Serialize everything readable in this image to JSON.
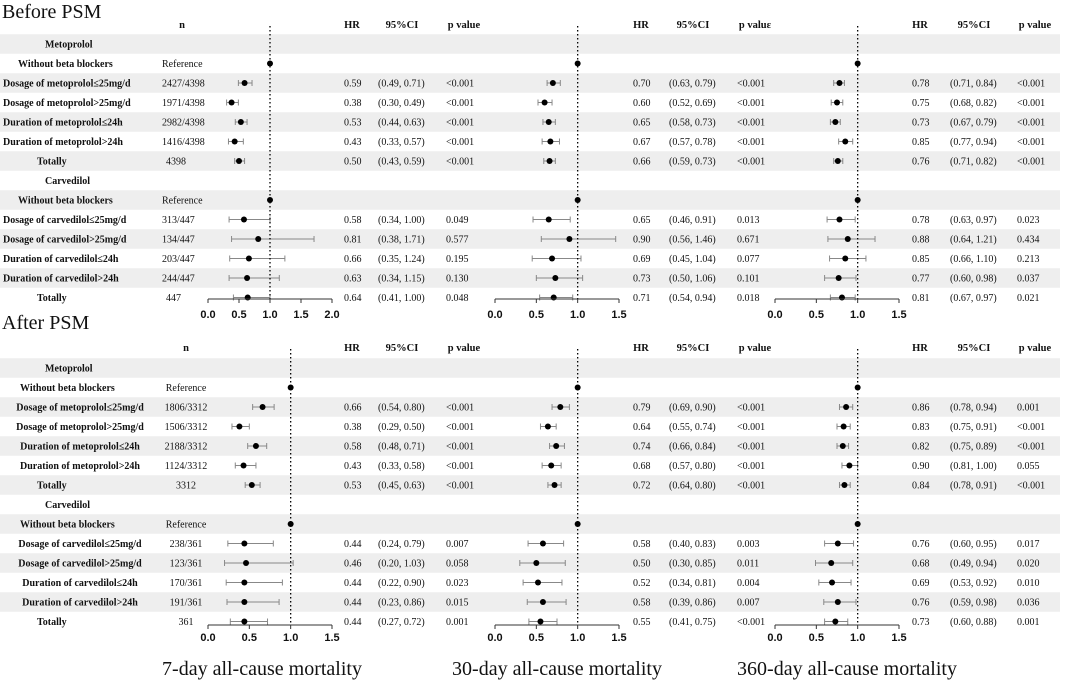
{
  "sections": [
    {
      "title": "Before PSM",
      "columns": {
        "n": "n",
        "hr": "HR",
        "ci": "95%CI",
        "p": "p value",
        "p_truncated": "p valuε"
      },
      "rows": [
        {
          "label": "Metoprolol",
          "kind": "group"
        },
        {
          "label": "Without beta blockers",
          "n": "Reference",
          "kind": "ref"
        },
        {
          "label": "Dosage of metoprolol≤25mg/d",
          "n": "2427/4398",
          "kind": "data",
          "m": [
            {
              "hr": "0.59",
              "ci": "(0.49, 0.71)",
              "p": "<0.001",
              "est": 0.59,
              "lo": 0.49,
              "hi": 0.71
            },
            {
              "hr": "0.70",
              "ci": "(0.63, 0.79)",
              "p": "<0.001",
              "est": 0.7,
              "lo": 0.63,
              "hi": 0.79
            },
            {
              "hr": "0.78",
              "ci": "(0.71, 0.84)",
              "p": "<0.001",
              "est": 0.78,
              "lo": 0.71,
              "hi": 0.84
            }
          ]
        },
        {
          "label": "Dosage of metoprolol>25mg/d",
          "n": "1971/4398",
          "kind": "data",
          "m": [
            {
              "hr": "0.38",
              "ci": "(0.30, 0.49)",
              "p": "<0.001",
              "est": 0.38,
              "lo": 0.3,
              "hi": 0.49
            },
            {
              "hr": "0.60",
              "ci": "(0.52, 0.69)",
              "p": "<0.001",
              "est": 0.6,
              "lo": 0.52,
              "hi": 0.69
            },
            {
              "hr": "0.75",
              "ci": "(0.68, 0.82)",
              "p": "<0.001",
              "est": 0.75,
              "lo": 0.68,
              "hi": 0.82
            }
          ]
        },
        {
          "label": "Duration of metoprolol≤24h",
          "n": "2982/4398",
          "kind": "data",
          "m": [
            {
              "hr": "0.53",
              "ci": "(0.44, 0.63)",
              "p": "<0.001",
              "est": 0.53,
              "lo": 0.44,
              "hi": 0.63
            },
            {
              "hr": "0.65",
              "ci": "(0.58, 0.73)",
              "p": "<0.001",
              "est": 0.65,
              "lo": 0.58,
              "hi": 0.73
            },
            {
              "hr": "0.73",
              "ci": "(0.67, 0.79)",
              "p": "<0.001",
              "est": 0.73,
              "lo": 0.67,
              "hi": 0.79
            }
          ]
        },
        {
          "label": "Duration of metoprolol>24h",
          "n": "1416/4398",
          "kind": "data",
          "m": [
            {
              "hr": "0.43",
              "ci": "(0.33, 0.57)",
              "p": "<0.001",
              "est": 0.43,
              "lo": 0.33,
              "hi": 0.57
            },
            {
              "hr": "0.67",
              "ci": "(0.57, 0.78)",
              "p": "<0.001",
              "est": 0.67,
              "lo": 0.57,
              "hi": 0.78
            },
            {
              "hr": "0.85",
              "ci": "(0.77, 0.94)",
              "p": "<0.001",
              "est": 0.85,
              "lo": 0.77,
              "hi": 0.94
            }
          ]
        },
        {
          "label": "Totally",
          "n": "4398",
          "kind": "data",
          "m": [
            {
              "hr": "0.50",
              "ci": "(0.43, 0.59)",
              "p": "<0.001",
              "est": 0.5,
              "lo": 0.43,
              "hi": 0.59
            },
            {
              "hr": "0.66",
              "ci": "(0.59, 0.73)",
              "p": "<0.001",
              "est": 0.66,
              "lo": 0.59,
              "hi": 0.73
            },
            {
              "hr": "0.76",
              "ci": "(0.71, 0.82)",
              "p": "<0.001",
              "est": 0.76,
              "lo": 0.71,
              "hi": 0.82
            }
          ]
        },
        {
          "label": "Carvedilol",
          "kind": "group"
        },
        {
          "label": "Without beta blockers",
          "n": "Reference",
          "kind": "ref"
        },
        {
          "label": "Dosage of carvedilol≤25mg/d",
          "n": "313/447",
          "kind": "data",
          "m": [
            {
              "hr": "0.58",
              "ci": "(0.34, 1.00)",
              "p": "0.049",
              "est": 0.58,
              "lo": 0.34,
              "hi": 1.0
            },
            {
              "hr": "0.65",
              "ci": "(0.46, 0.91)",
              "p": "0.013",
              "est": 0.65,
              "lo": 0.46,
              "hi": 0.91
            },
            {
              "hr": "0.78",
              "ci": "(0.63, 0.97)",
              "p": "0.023",
              "est": 0.78,
              "lo": 0.63,
              "hi": 0.97
            }
          ]
        },
        {
          "label": "Dosage of carvedilol>25mg/d",
          "n": "134/447",
          "kind": "data",
          "m": [
            {
              "hr": "0.81",
              "ci": "(0.38, 1.71)",
              "p": "0.577",
              "est": 0.81,
              "lo": 0.38,
              "hi": 1.71
            },
            {
              "hr": "0.90",
              "ci": "(0.56, 1.46)",
              "p": "0.671",
              "est": 0.9,
              "lo": 0.56,
              "hi": 1.46
            },
            {
              "hr": "0.88",
              "ci": "(0.64, 1.21)",
              "p": "0.434",
              "est": 0.88,
              "lo": 0.64,
              "hi": 1.21
            }
          ]
        },
        {
          "label": "Duration of carvedilol≤24h",
          "n": "203/447",
          "kind": "data",
          "m": [
            {
              "hr": "0.66",
              "ci": "(0.35, 1.24)",
              "p": "0.195",
              "est": 0.66,
              "lo": 0.35,
              "hi": 1.24
            },
            {
              "hr": "0.69",
              "ci": "(0.45, 1.04)",
              "p": "0.077",
              "est": 0.69,
              "lo": 0.45,
              "hi": 1.04
            },
            {
              "hr": "0.85",
              "ci": "(0.66, 1.10)",
              "p": "0.213",
              "est": 0.85,
              "lo": 0.66,
              "hi": 1.1
            }
          ]
        },
        {
          "label": "Duration of carvedilol>24h",
          "n": "244/447",
          "kind": "data",
          "m": [
            {
              "hr": "0.63",
              "ci": "(0.34, 1.15)",
              "p": "0.130",
              "est": 0.63,
              "lo": 0.34,
              "hi": 1.15
            },
            {
              "hr": "0.73",
              "ci": "(0.50, 1.06)",
              "p": "0.101",
              "est": 0.73,
              "lo": 0.5,
              "hi": 1.06
            },
            {
              "hr": "0.77",
              "ci": "(0.60, 0.98)",
              "p": "0.037",
              "est": 0.77,
              "lo": 0.6,
              "hi": 0.98
            }
          ]
        },
        {
          "label": "Totally",
          "n": "447",
          "kind": "data",
          "m": [
            {
              "hr": "0.64",
              "ci": "(0.41, 1.00)",
              "p": "0.048",
              "est": 0.64,
              "lo": 0.41,
              "hi": 1.0
            },
            {
              "hr": "0.71",
              "ci": "(0.54, 0.94)",
              "p": "0.018",
              "est": 0.71,
              "lo": 0.54,
              "hi": 0.94
            },
            {
              "hr": "0.81",
              "ci": "(0.67, 0.97)",
              "p": "0.021",
              "est": 0.81,
              "lo": 0.67,
              "hi": 0.97
            }
          ]
        }
      ],
      "axes": [
        {
          "ticks": [
            "0.0",
            "0.5",
            "1.0",
            "1.5",
            "2.0"
          ],
          "xlim": [
            0,
            2.0
          ]
        },
        {
          "ticks": [
            "0.0",
            "0.5",
            "1.0",
            "1.5"
          ],
          "xlim": [
            0,
            1.5
          ]
        },
        {
          "ticks": [
            "0.0",
            "0.5",
            "1.0",
            "1.5"
          ],
          "xlim": [
            0,
            1.5
          ]
        }
      ]
    },
    {
      "title": "After PSM",
      "columns": {
        "n": "n",
        "hr": "HR",
        "ci": "95%CI",
        "p": "p value"
      },
      "rows": [
        {
          "label": "Metoprolol",
          "kind": "group"
        },
        {
          "label": "Without beta blockers",
          "n": "Reference",
          "kind": "ref"
        },
        {
          "label": "Dosage of metoprolol≤25mg/d",
          "n": "1806/3312",
          "kind": "data",
          "m": [
            {
              "hr": "0.66",
              "ci": "(0.54, 0.80)",
              "p": "<0.001",
              "est": 0.66,
              "lo": 0.54,
              "hi": 0.8
            },
            {
              "hr": "0.79",
              "ci": "(0.69, 0.90)",
              "p": "<0.001",
              "est": 0.79,
              "lo": 0.69,
              "hi": 0.9
            },
            {
              "hr": "0.86",
              "ci": "(0.78, 0.94)",
              "p": "0.001",
              "est": 0.86,
              "lo": 0.78,
              "hi": 0.94
            }
          ]
        },
        {
          "label": "Dosage of metoprolol>25mg/d",
          "n": "1506/3312",
          "kind": "data",
          "m": [
            {
              "hr": "0.38",
              "ci": "(0.29, 0.50)",
              "p": "<0.001",
              "est": 0.38,
              "lo": 0.29,
              "hi": 0.5
            },
            {
              "hr": "0.64",
              "ci": "(0.55, 0.74)",
              "p": "<0.001",
              "est": 0.64,
              "lo": 0.55,
              "hi": 0.74
            },
            {
              "hr": "0.83",
              "ci": "(0.75, 0.91)",
              "p": "<0.001",
              "est": 0.83,
              "lo": 0.75,
              "hi": 0.91
            }
          ]
        },
        {
          "label": "Duration of metoprolol≤24h",
          "n": "2188/3312",
          "kind": "data",
          "m": [
            {
              "hr": "0.58",
              "ci": "(0.48, 0.71)",
              "p": "<0.001",
              "est": 0.58,
              "lo": 0.48,
              "hi": 0.71
            },
            {
              "hr": "0.74",
              "ci": "(0.66, 0.84)",
              "p": "<0.001",
              "est": 0.74,
              "lo": 0.66,
              "hi": 0.84
            },
            {
              "hr": "0.82",
              "ci": "(0.75, 0.89)",
              "p": "<0.001",
              "est": 0.82,
              "lo": 0.75,
              "hi": 0.89
            }
          ]
        },
        {
          "label": "Duration of metoprolol>24h",
          "n": "1124/3312",
          "kind": "data",
          "m": [
            {
              "hr": "0.43",
              "ci": "(0.33, 0.58)",
              "p": "<0.001",
              "est": 0.43,
              "lo": 0.33,
              "hi": 0.58
            },
            {
              "hr": "0.68",
              "ci": "(0.57, 0.80)",
              "p": "<0.001",
              "est": 0.68,
              "lo": 0.57,
              "hi": 0.8
            },
            {
              "hr": "0.90",
              "ci": "(0.81, 1.00)",
              "p": "0.055",
              "est": 0.9,
              "lo": 0.81,
              "hi": 1.0
            }
          ]
        },
        {
          "label": "Totally",
          "n": "3312",
          "kind": "data",
          "m": [
            {
              "hr": "0.53",
              "ci": "(0.45, 0.63)",
              "p": "<0.001",
              "est": 0.53,
              "lo": 0.45,
              "hi": 0.63
            },
            {
              "hr": "0.72",
              "ci": "(0.64, 0.80)",
              "p": "<0.001",
              "est": 0.72,
              "lo": 0.64,
              "hi": 0.8
            },
            {
              "hr": "0.84",
              "ci": "(0.78, 0.91)",
              "p": "<0.001",
              "est": 0.84,
              "lo": 0.78,
              "hi": 0.91
            }
          ]
        },
        {
          "label": "Carvedilol",
          "kind": "group"
        },
        {
          "label": "Without beta blockers",
          "n": "Reference",
          "kind": "ref"
        },
        {
          "label": "Dosage of carvedilol≤25mg/d",
          "n": "238/361",
          "kind": "data",
          "m": [
            {
              "hr": "0.44",
              "ci": "(0.24, 0.79)",
              "p": "0.007",
              "est": 0.44,
              "lo": 0.24,
              "hi": 0.79
            },
            {
              "hr": "0.58",
              "ci": "(0.40, 0.83)",
              "p": "0.003",
              "est": 0.58,
              "lo": 0.4,
              "hi": 0.83
            },
            {
              "hr": "0.76",
              "ci": "(0.60, 0.95)",
              "p": "0.017",
              "est": 0.76,
              "lo": 0.6,
              "hi": 0.95
            }
          ]
        },
        {
          "label": "Dosage of carvedilol>25mg/d",
          "n": "123/361",
          "kind": "data",
          "m": [
            {
              "hr": "0.46",
              "ci": "(0.20, 1.03)",
              "p": "0.058",
              "est": 0.46,
              "lo": 0.2,
              "hi": 1.03
            },
            {
              "hr": "0.50",
              "ci": "(0.30, 0.85)",
              "p": "0.011",
              "est": 0.5,
              "lo": 0.3,
              "hi": 0.85
            },
            {
              "hr": "0.68",
              "ci": "(0.49, 0.94)",
              "p": "0.020",
              "est": 0.68,
              "lo": 0.49,
              "hi": 0.94
            }
          ]
        },
        {
          "label": "Duration of carvedilol≤24h",
          "n": "170/361",
          "kind": "data",
          "m": [
            {
              "hr": "0.44",
              "ci": "(0.22, 0.90)",
              "p": "0.023",
              "est": 0.44,
              "lo": 0.22,
              "hi": 0.9
            },
            {
              "hr": "0.52",
              "ci": "(0.34, 0.81)",
              "p": "0.004",
              "est": 0.52,
              "lo": 0.34,
              "hi": 0.81
            },
            {
              "hr": "0.69",
              "ci": "(0.53, 0.92)",
              "p": "0.010",
              "est": 0.69,
              "lo": 0.53,
              "hi": 0.92
            }
          ]
        },
        {
          "label": "Duration of carvedilol>24h",
          "n": "191/361",
          "kind": "data",
          "m": [
            {
              "hr": "0.44",
              "ci": "(0.23, 0.86)",
              "p": "0.015",
              "est": 0.44,
              "lo": 0.23,
              "hi": 0.86
            },
            {
              "hr": "0.58",
              "ci": "(0.39, 0.86)",
              "p": "0.007",
              "est": 0.58,
              "lo": 0.39,
              "hi": 0.86
            },
            {
              "hr": "0.76",
              "ci": "(0.59, 0.98)",
              "p": "0.036",
              "est": 0.76,
              "lo": 0.59,
              "hi": 0.98
            }
          ]
        },
        {
          "label": "Totally",
          "n": "361",
          "kind": "data",
          "m": [
            {
              "hr": "0.44",
              "ci": "(0.27, 0.72)",
              "p": "0.001",
              "est": 0.44,
              "lo": 0.27,
              "hi": 0.72
            },
            {
              "hr": "0.55",
              "ci": "(0.41, 0.75)",
              "p": "<0.001",
              "est": 0.55,
              "lo": 0.41,
              "hi": 0.75
            },
            {
              "hr": "0.73",
              "ci": "(0.60, 0.88)",
              "p": "0.001",
              "est": 0.73,
              "lo": 0.6,
              "hi": 0.88
            }
          ]
        }
      ],
      "axes": [
        {
          "ticks": [
            "0.0",
            "0.5",
            "1.0",
            "1.5"
          ],
          "xlim": [
            0,
            1.5
          ]
        },
        {
          "ticks": [
            "0.0",
            "0.5",
            "1.0",
            "1.5"
          ],
          "xlim": [
            0,
            1.5
          ]
        },
        {
          "ticks": [
            "0.0",
            "0.5",
            "1.0",
            "1.5"
          ],
          "xlim": [
            0,
            1.5
          ]
        }
      ]
    }
  ],
  "footer_labels": [
    "7-day all-cause mortality",
    "30-day all-cause mortality",
    "360-day all-cause mortality"
  ],
  "colors": {
    "stripe": "#eeeeee",
    "marker": "#000000",
    "errorbar": "#888888",
    "refline": "#000000"
  },
  "chart_data": {
    "type": "forest",
    "scale": "linear",
    "reference_value": 1.0,
    "grid": false,
    "panels": [
      "Before PSM",
      "After PSM"
    ],
    "outcomes": [
      "7-day all-cause mortality",
      "30-day all-cause mortality",
      "360-day all-cause mortality"
    ],
    "xlim_before": [
      [
        0,
        2.0
      ],
      [
        0,
        1.5
      ],
      [
        0,
        1.5
      ]
    ],
    "xlim_after": [
      [
        0,
        1.5
      ],
      [
        0,
        1.5
      ],
      [
        0,
        1.5
      ]
    ],
    "note": "Point estimates and 95% CI for each row are listed in sections[].rows[].m (est, lo, hi)"
  }
}
